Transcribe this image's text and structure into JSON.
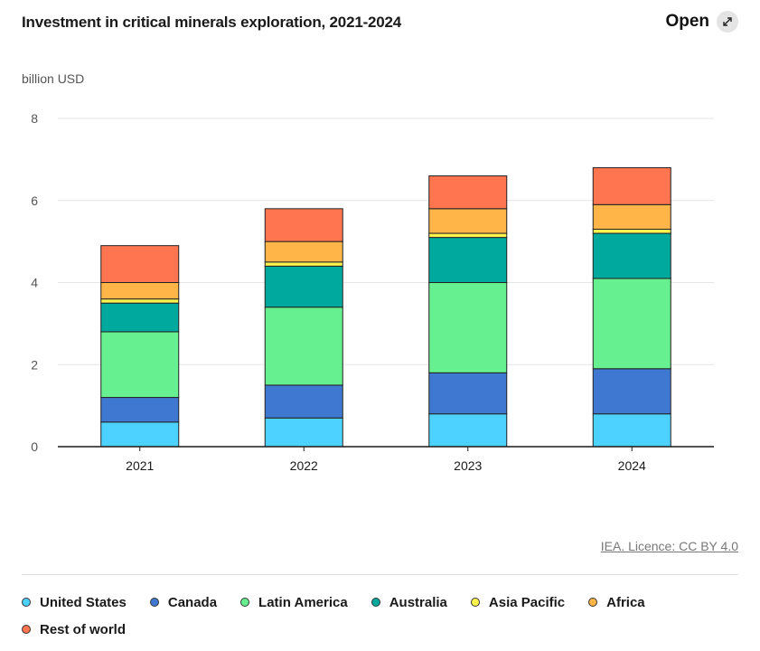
{
  "header": {
    "title": "Investment in critical minerals exploration, 2021-2024",
    "open_label": "Open",
    "open_icon": "expand-arrows-icon"
  },
  "source": {
    "label": "IEA. Licence: CC BY 4.0"
  },
  "colors": {
    "grid": "#e6e6e6",
    "axis": "#1a1a1a",
    "bar_stroke": "#222222"
  },
  "chart_data": {
    "type": "bar",
    "stacked": true,
    "title": "Investment in critical minerals exploration, 2021-2024",
    "ylabel": "billion USD",
    "xlabel": "",
    "ylim": [
      0,
      8
    ],
    "yticks": [
      0,
      2,
      4,
      6,
      8
    ],
    "grid": true,
    "legend_position": "bottom",
    "categories": [
      "2021",
      "2022",
      "2023",
      "2024"
    ],
    "series": [
      {
        "name": "United States",
        "color": "#4dd2ff",
        "values": [
          0.6,
          0.7,
          0.8,
          0.8
        ]
      },
      {
        "name": "Canada",
        "color": "#3f78d0",
        "values": [
          0.6,
          0.8,
          1.0,
          1.1
        ]
      },
      {
        "name": "Latin America",
        "color": "#67f08f",
        "values": [
          1.6,
          1.9,
          2.2,
          2.2
        ]
      },
      {
        "name": "Australia",
        "color": "#00a99d",
        "values": [
          0.7,
          1.0,
          1.1,
          1.1
        ]
      },
      {
        "name": "Asia Pacific",
        "color": "#fff44f",
        "values": [
          0.1,
          0.1,
          0.1,
          0.1
        ]
      },
      {
        "name": "Africa",
        "color": "#ffb547",
        "values": [
          0.4,
          0.5,
          0.6,
          0.6
        ]
      },
      {
        "name": "Rest of world",
        "color": "#ff7550",
        "values": [
          0.9,
          0.8,
          0.8,
          0.9
        ]
      }
    ]
  }
}
